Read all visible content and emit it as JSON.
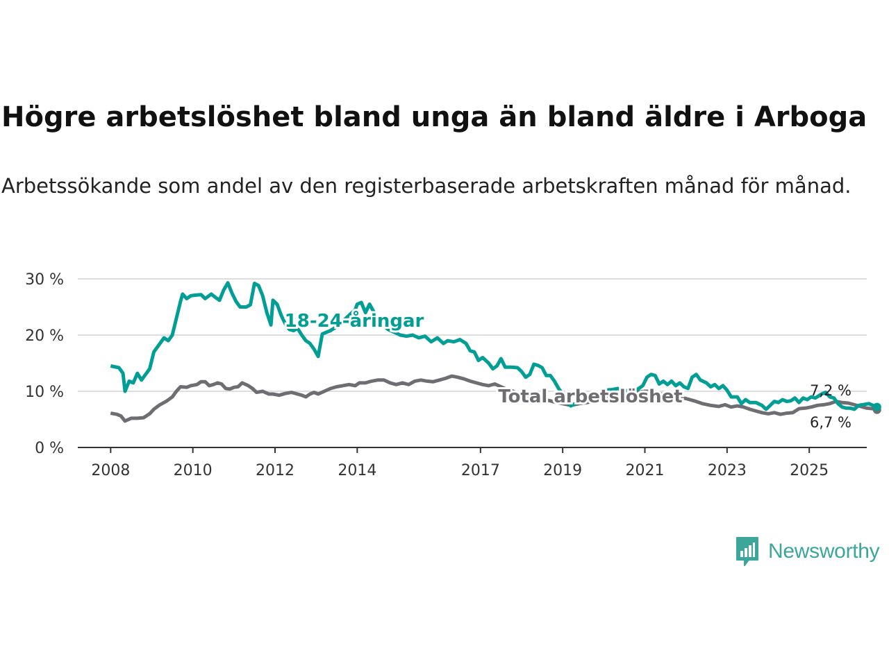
{
  "title": "Högre arbetslöshet bland unga än bland äldre i Arboga",
  "subtitle": "Arbetssökande som andel av den registerbaserade arbetskraften månad för månad.",
  "brand": {
    "name": "Newsworthy",
    "icon": "bar-chart-speech-bubble-icon",
    "color": "#3aa79a"
  },
  "chart_data": {
    "type": "line",
    "y_ticks": [
      0,
      10,
      20,
      30
    ],
    "y_tick_labels": [
      "0 %",
      "10 %",
      "20 %",
      "30 %"
    ],
    "x_ticks": [
      2008,
      2010,
      2012,
      2014,
      2017,
      2019,
      2021,
      2023,
      2025
    ],
    "ylim": [
      0,
      30
    ],
    "xlim": [
      2007.2,
      2026.4
    ],
    "grid": true,
    "series": [
      {
        "name": "18-24-åringar",
        "color": "#009e94",
        "label": "18-24-åringar",
        "end_label": "7,2 %",
        "points": [
          [
            2008.0,
            14.5
          ],
          [
            2008.2,
            14.2
          ],
          [
            2008.3,
            13.2
          ],
          [
            2008.35,
            10.0
          ],
          [
            2008.45,
            11.8
          ],
          [
            2008.55,
            11.5
          ],
          [
            2008.65,
            13.2
          ],
          [
            2008.75,
            12.0
          ],
          [
            2008.85,
            13.0
          ],
          [
            2008.95,
            14.0
          ],
          [
            2009.05,
            17.0
          ],
          [
            2009.2,
            18.5
          ],
          [
            2009.3,
            19.5
          ],
          [
            2009.4,
            19.0
          ],
          [
            2009.5,
            20.0
          ],
          [
            2009.6,
            23.0
          ],
          [
            2009.7,
            26.0
          ],
          [
            2009.75,
            27.3
          ],
          [
            2009.85,
            26.5
          ],
          [
            2009.95,
            27.0
          ],
          [
            2010.05,
            27.1
          ],
          [
            2010.2,
            27.2
          ],
          [
            2010.3,
            26.5
          ],
          [
            2010.45,
            27.3
          ],
          [
            2010.55,
            26.7
          ],
          [
            2010.65,
            26.2
          ],
          [
            2010.75,
            28.0
          ],
          [
            2010.85,
            29.3
          ],
          [
            2010.95,
            27.5
          ],
          [
            2011.05,
            26.0
          ],
          [
            2011.15,
            25.0
          ],
          [
            2011.3,
            25.0
          ],
          [
            2011.4,
            25.4
          ],
          [
            2011.5,
            29.2
          ],
          [
            2011.6,
            28.8
          ],
          [
            2011.7,
            27.0
          ],
          [
            2011.8,
            24.0
          ],
          [
            2011.9,
            21.8
          ],
          [
            2011.95,
            26.2
          ],
          [
            2012.05,
            25.5
          ],
          [
            2012.15,
            23.5
          ],
          [
            2012.25,
            22.0
          ],
          [
            2012.35,
            21.0
          ],
          [
            2012.45,
            20.8
          ],
          [
            2012.55,
            21.2
          ],
          [
            2012.65,
            20.0
          ],
          [
            2012.75,
            19.0
          ],
          [
            2012.85,
            18.5
          ],
          [
            2012.95,
            17.5
          ],
          [
            2013.05,
            16.2
          ],
          [
            2013.15,
            20.2
          ],
          [
            2013.25,
            20.5
          ],
          [
            2013.35,
            20.8
          ],
          [
            2013.5,
            21.5
          ],
          [
            2013.65,
            22.5
          ],
          [
            2013.8,
            23.5
          ],
          [
            2013.95,
            24.5
          ],
          [
            2014.0,
            25.5
          ],
          [
            2014.1,
            25.8
          ],
          [
            2014.2,
            24.0
          ],
          [
            2014.3,
            25.5
          ],
          [
            2014.45,
            23.5
          ],
          [
            2014.6,
            22.0
          ],
          [
            2014.75,
            21.0
          ],
          [
            2014.9,
            20.5
          ],
          [
            2015.05,
            20.0
          ],
          [
            2015.2,
            19.8
          ],
          [
            2015.35,
            20.0
          ],
          [
            2015.5,
            19.5
          ],
          [
            2015.65,
            19.8
          ],
          [
            2015.8,
            18.8
          ],
          [
            2015.95,
            19.5
          ],
          [
            2016.1,
            18.5
          ],
          [
            2016.2,
            19.0
          ],
          [
            2016.35,
            18.8
          ],
          [
            2016.5,
            19.2
          ],
          [
            2016.65,
            18.5
          ],
          [
            2016.75,
            17.2
          ],
          [
            2016.85,
            17.0
          ],
          [
            2016.95,
            15.5
          ],
          [
            2017.05,
            16.0
          ],
          [
            2017.2,
            15.0
          ],
          [
            2017.3,
            14.0
          ],
          [
            2017.4,
            14.5
          ],
          [
            2017.5,
            15.8
          ],
          [
            2017.6,
            14.3
          ],
          [
            2017.75,
            14.3
          ],
          [
            2017.9,
            14.2
          ],
          [
            2018.0,
            13.5
          ],
          [
            2018.1,
            12.5
          ],
          [
            2018.2,
            13.0
          ],
          [
            2018.3,
            14.8
          ],
          [
            2018.4,
            14.6
          ],
          [
            2018.5,
            14.2
          ],
          [
            2018.6,
            12.8
          ],
          [
            2018.7,
            12.8
          ],
          [
            2018.8,
            11.8
          ],
          [
            2018.9,
            10.5
          ],
          [
            2019.0,
            9.5
          ],
          [
            2019.1,
            8.0
          ],
          [
            2019.2,
            7.4
          ],
          [
            2019.35,
            8.0
          ],
          [
            2019.5,
            8.5
          ],
          [
            2019.7,
            9.0
          ],
          [
            2019.85,
            9.5
          ],
          [
            2020.0,
            10.2
          ],
          [
            2020.2,
            10.3
          ],
          [
            2020.35,
            10.5
          ],
          [
            2020.5,
            10.0
          ],
          [
            2020.6,
            10.2
          ],
          [
            2020.75,
            10.0
          ],
          [
            2020.85,
            10.5
          ],
          [
            2020.95,
            11.0
          ],
          [
            2021.05,
            12.5
          ],
          [
            2021.15,
            13.0
          ],
          [
            2021.25,
            12.8
          ],
          [
            2021.35,
            11.3
          ],
          [
            2021.45,
            11.8
          ],
          [
            2021.55,
            11.2
          ],
          [
            2021.65,
            11.8
          ],
          [
            2021.75,
            11.0
          ],
          [
            2021.85,
            11.5
          ],
          [
            2021.95,
            10.8
          ],
          [
            2022.05,
            10.5
          ],
          [
            2022.15,
            12.5
          ],
          [
            2022.25,
            13.0
          ],
          [
            2022.35,
            12.0
          ],
          [
            2022.5,
            11.5
          ],
          [
            2022.6,
            10.8
          ],
          [
            2022.7,
            11.2
          ],
          [
            2022.8,
            10.5
          ],
          [
            2022.9,
            11.0
          ],
          [
            2023.0,
            10.2
          ],
          [
            2023.1,
            9.0
          ],
          [
            2023.25,
            9.0
          ],
          [
            2023.35,
            7.8
          ],
          [
            2023.45,
            8.5
          ],
          [
            2023.55,
            8.0
          ],
          [
            2023.7,
            8.0
          ],
          [
            2023.85,
            7.5
          ],
          [
            2023.95,
            6.8
          ],
          [
            2024.05,
            7.5
          ],
          [
            2024.15,
            8.2
          ],
          [
            2024.25,
            8.0
          ],
          [
            2024.35,
            8.5
          ],
          [
            2024.45,
            8.2
          ],
          [
            2024.55,
            8.3
          ],
          [
            2024.65,
            8.8
          ],
          [
            2024.75,
            8.0
          ],
          [
            2024.85,
            8.8
          ],
          [
            2024.95,
            8.5
          ],
          [
            2025.05,
            9.0
          ],
          [
            2025.15,
            8.8
          ],
          [
            2025.3,
            9.5
          ],
          [
            2025.4,
            9.8
          ],
          [
            2025.5,
            9.0
          ],
          [
            2025.6,
            8.8
          ],
          [
            2025.7,
            7.8
          ],
          [
            2025.8,
            7.2
          ],
          [
            2025.9,
            7.0
          ],
          [
            2026.0,
            7.0
          ],
          [
            2026.1,
            6.8
          ],
          [
            2026.2,
            7.5
          ],
          [
            2026.3,
            7.6
          ],
          [
            2026.45,
            7.8
          ],
          [
            2026.55,
            7.5
          ],
          [
            2026.65,
            7.2
          ]
        ]
      },
      {
        "name": "Total arbetslöshet",
        "color": "#6f6d72",
        "label": "Total arbetslöshet",
        "end_label": "6,7 %",
        "points": [
          [
            2008.0,
            6.1
          ],
          [
            2008.15,
            5.9
          ],
          [
            2008.25,
            5.6
          ],
          [
            2008.35,
            4.7
          ],
          [
            2008.5,
            5.2
          ],
          [
            2008.65,
            5.2
          ],
          [
            2008.8,
            5.3
          ],
          [
            2008.95,
            6.0
          ],
          [
            2009.05,
            6.8
          ],
          [
            2009.2,
            7.6
          ],
          [
            2009.35,
            8.2
          ],
          [
            2009.5,
            9.0
          ],
          [
            2009.6,
            10.0
          ],
          [
            2009.7,
            10.8
          ],
          [
            2009.85,
            10.7
          ],
          [
            2009.95,
            11.0
          ],
          [
            2010.1,
            11.2
          ],
          [
            2010.2,
            11.7
          ],
          [
            2010.3,
            11.7
          ],
          [
            2010.4,
            11.0
          ],
          [
            2010.5,
            11.2
          ],
          [
            2010.6,
            11.5
          ],
          [
            2010.7,
            11.3
          ],
          [
            2010.8,
            10.5
          ],
          [
            2010.9,
            10.4
          ],
          [
            2011.0,
            10.7
          ],
          [
            2011.1,
            10.8
          ],
          [
            2011.2,
            11.5
          ],
          [
            2011.35,
            11.0
          ],
          [
            2011.45,
            10.5
          ],
          [
            2011.55,
            9.8
          ],
          [
            2011.7,
            10.0
          ],
          [
            2011.85,
            9.5
          ],
          [
            2011.95,
            9.5
          ],
          [
            2012.1,
            9.3
          ],
          [
            2012.25,
            9.6
          ],
          [
            2012.4,
            9.8
          ],
          [
            2012.55,
            9.5
          ],
          [
            2012.65,
            9.3
          ],
          [
            2012.75,
            9.0
          ],
          [
            2012.85,
            9.5
          ],
          [
            2012.95,
            9.8
          ],
          [
            2013.05,
            9.5
          ],
          [
            2013.2,
            10.0
          ],
          [
            2013.35,
            10.5
          ],
          [
            2013.5,
            10.8
          ],
          [
            2013.65,
            11.0
          ],
          [
            2013.8,
            11.2
          ],
          [
            2013.95,
            11.0
          ],
          [
            2014.05,
            11.5
          ],
          [
            2014.2,
            11.5
          ],
          [
            2014.35,
            11.8
          ],
          [
            2014.5,
            12.0
          ],
          [
            2014.65,
            12.0
          ],
          [
            2014.8,
            11.5
          ],
          [
            2014.95,
            11.2
          ],
          [
            2015.1,
            11.5
          ],
          [
            2015.25,
            11.2
          ],
          [
            2015.4,
            11.8
          ],
          [
            2015.55,
            12.0
          ],
          [
            2015.7,
            11.8
          ],
          [
            2015.85,
            11.7
          ],
          [
            2016.0,
            12.0
          ],
          [
            2016.15,
            12.3
          ],
          [
            2016.3,
            12.7
          ],
          [
            2016.45,
            12.5
          ],
          [
            2016.6,
            12.2
          ],
          [
            2016.75,
            11.8
          ],
          [
            2016.9,
            11.5
          ],
          [
            2017.05,
            11.2
          ],
          [
            2017.2,
            11.0
          ],
          [
            2017.35,
            11.3
          ],
          [
            2017.5,
            10.8
          ],
          [
            2017.65,
            10.3
          ],
          [
            2017.8,
            10.0
          ],
          [
            2017.95,
            9.5
          ],
          [
            2018.1,
            9.3
          ],
          [
            2018.25,
            9.0
          ],
          [
            2018.4,
            8.8
          ],
          [
            2018.55,
            8.5
          ],
          [
            2018.7,
            8.3
          ],
          [
            2018.85,
            8.0
          ],
          [
            2019.0,
            7.8
          ],
          [
            2019.2,
            7.5
          ],
          [
            2019.4,
            7.8
          ],
          [
            2019.6,
            8.0
          ],
          [
            2019.8,
            8.4
          ],
          [
            2020.0,
            8.7
          ],
          [
            2020.2,
            8.8
          ],
          [
            2020.4,
            9.2
          ],
          [
            2020.6,
            9.5
          ],
          [
            2020.8,
            9.8
          ],
          [
            2021.0,
            10.0
          ],
          [
            2021.2,
            10.0
          ],
          [
            2021.4,
            9.5
          ],
          [
            2021.6,
            9.2
          ],
          [
            2021.8,
            9.0
          ],
          [
            2022.0,
            8.7
          ],
          [
            2022.2,
            8.3
          ],
          [
            2022.4,
            7.8
          ],
          [
            2022.6,
            7.5
          ],
          [
            2022.8,
            7.3
          ],
          [
            2022.95,
            7.6
          ],
          [
            2023.1,
            7.2
          ],
          [
            2023.25,
            7.4
          ],
          [
            2023.4,
            7.2
          ],
          [
            2023.55,
            6.8
          ],
          [
            2023.7,
            6.5
          ],
          [
            2023.85,
            6.2
          ],
          [
            2024.0,
            6.0
          ],
          [
            2024.15,
            6.2
          ],
          [
            2024.3,
            5.9
          ],
          [
            2024.45,
            6.1
          ],
          [
            2024.6,
            6.2
          ],
          [
            2024.75,
            6.9
          ],
          [
            2024.9,
            7.0
          ],
          [
            2025.05,
            7.2
          ],
          [
            2025.2,
            7.5
          ],
          [
            2025.35,
            7.6
          ],
          [
            2025.5,
            7.8
          ],
          [
            2025.65,
            8.2
          ],
          [
            2025.8,
            8.0
          ],
          [
            2025.95,
            7.9
          ],
          [
            2026.1,
            7.6
          ],
          [
            2026.25,
            7.3
          ],
          [
            2026.4,
            7.0
          ],
          [
            2026.55,
            6.9
          ],
          [
            2026.65,
            6.7
          ]
        ]
      }
    ]
  }
}
